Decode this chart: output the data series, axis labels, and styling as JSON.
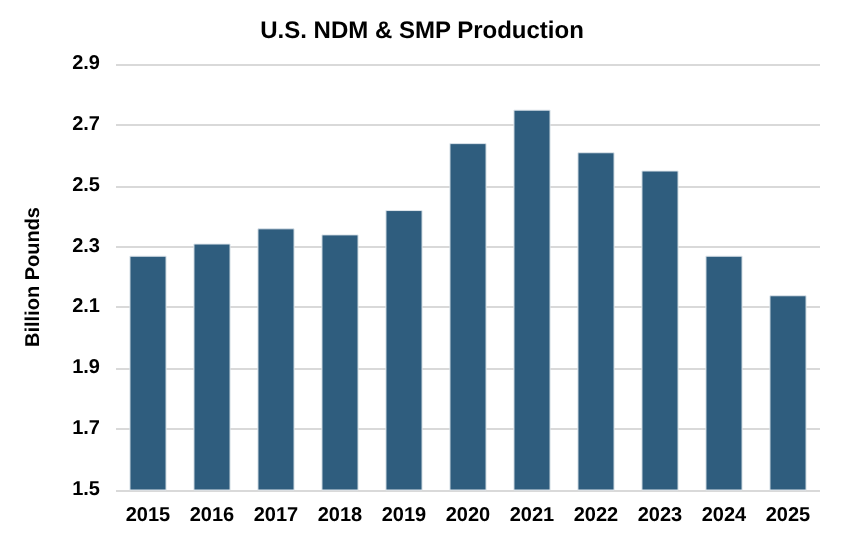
{
  "chart_data": {
    "type": "bar",
    "title": "U.S. NDM & SMP Production",
    "ylabel": "Billion Pounds",
    "categories": [
      "2015",
      "2016",
      "2017",
      "2018",
      "2019",
      "2020",
      "2021",
      "2022",
      "2023",
      "2024",
      "2025"
    ],
    "values": [
      2.27,
      2.31,
      2.36,
      2.34,
      2.42,
      2.64,
      2.75,
      2.61,
      2.55,
      2.27,
      2.14
    ],
    "color": "#2f5d7e",
    "ylim": [
      1.5,
      2.9
    ],
    "yticks": [
      1.5,
      1.7,
      1.9,
      2.1,
      2.3,
      2.5,
      2.7,
      2.9
    ],
    "grid": "y"
  }
}
